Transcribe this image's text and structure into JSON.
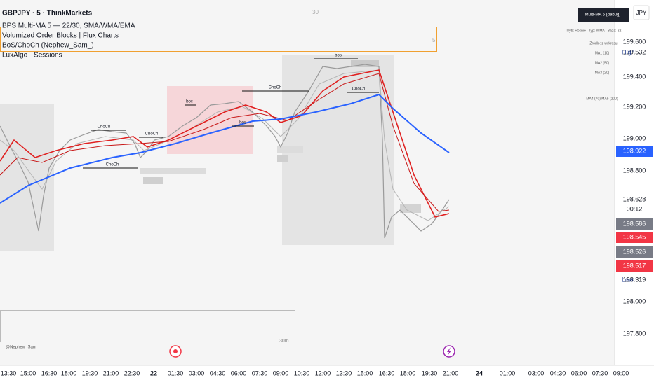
{
  "header": {
    "symbol": "GBPJPY · 5 · ThinkMarkets",
    "indicators": [
      "BPS Multi-MA 5 — 22/30, SMA/WMA/EMA",
      "Volumized Order Blocks | Flux Charts",
      "BoS/ChoCh (Nephew_Sam_)",
      "LuxAlgo - Sessions"
    ],
    "pane_counter": "30",
    "box_counter": "5"
  },
  "top_right": {
    "panel_title": "Multi-MA 5 (debug)",
    "currency": "JPY",
    "table": [
      "Tryb: Rosnie | Typ: WMA | Baza: 22",
      "Źródło: z wykresu",
      "MA1 (10)",
      "MA2 (50)",
      "MA3 (20)",
      "MA4 (70)  MA5 (200)"
    ]
  },
  "annotations": [
    "ChoCh",
    "ChoCh",
    "ChoCh",
    "bos",
    "bos",
    "ChoCh",
    "bos",
    "ChoCh"
  ],
  "price_axis": {
    "labels": [
      "199.600",
      "199.532",
      "199.400",
      "199.200",
      "199.000",
      "198.922",
      "198.800",
      "198.628",
      "00:12",
      "198.586",
      "198.545",
      "198.526",
      "198.517",
      "198.319",
      "198.000",
      "197.800"
    ],
    "high": "High",
    "low": "Low"
  },
  "bottom_pane": {
    "watermark": "@Nephew_Sam_",
    "interval": "30m"
  },
  "time_axis": [
    "13:30",
    "15:00",
    "16:30",
    "18:00",
    "19:30",
    "21:00",
    "22:30",
    "22",
    "01:30",
    "03:00",
    "04:30",
    "06:00",
    "07:30",
    "09:00",
    "10:30",
    "12:00",
    "13:30",
    "15:00",
    "16:30",
    "18:00",
    "19:30",
    "21:00",
    "24",
    "01:00",
    "03:00",
    "04:30",
    "06:00",
    "07:30",
    "09:00"
  ]
}
